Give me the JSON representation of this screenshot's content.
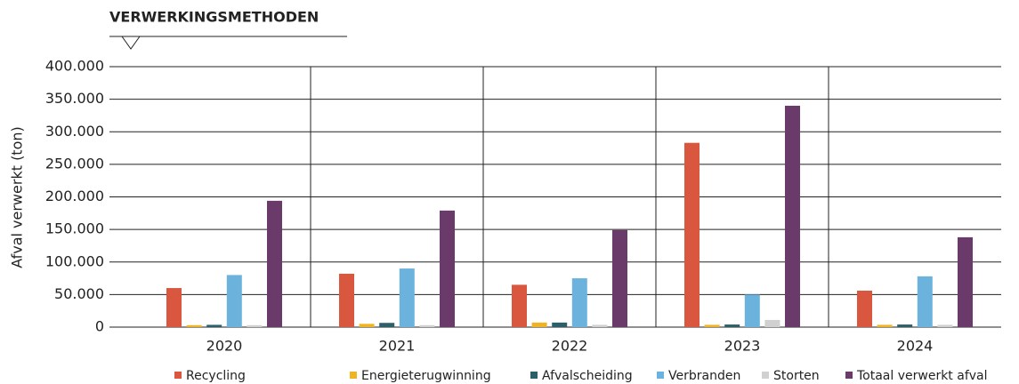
{
  "chart_data": {
    "type": "bar",
    "title": "VERWERKINGSMETHODEN",
    "ylabel": "Afval verwerkt  (ton)",
    "categories": [
      "2020",
      "2021",
      "2022",
      "2023",
      "2024"
    ],
    "series": [
      {
        "name": "Recycling",
        "color": "#d9573f",
        "values": [
          60000,
          82000,
          65000,
          283000,
          56000
        ]
      },
      {
        "name": "Energieterugwinning",
        "color": "#f0b323",
        "values": [
          3000,
          5000,
          7000,
          3500,
          3500
        ]
      },
      {
        "name": "Afvalscheiding",
        "color": "#2d5f6b",
        "values": [
          3500,
          6500,
          7000,
          4000,
          4000
        ]
      },
      {
        "name": "Verbranden",
        "color": "#6bb3dd",
        "values": [
          80000,
          90000,
          75000,
          50000,
          78000
        ]
      },
      {
        "name": "Storten",
        "color": "#d0d0d0",
        "values": [
          3000,
          3000,
          3500,
          11000,
          3500
        ]
      },
      {
        "name": "Totaal verwerkt afval",
        "color": "#6a3a6b",
        "values": [
          194000,
          179000,
          149000,
          340000,
          138000
        ]
      }
    ],
    "ylim": [
      0,
      400000
    ],
    "yticks": [
      0,
      {
        "value": 50000,
        "label": "50.000"
      },
      {
        "value": 100000,
        "label": "100.000"
      },
      {
        "value": 150000,
        "label": "150.000"
      },
      {
        "value": 200000,
        "label": "200.000"
      },
      {
        "value": 250000,
        "label": "250.000"
      },
      {
        "value": 300000,
        "label": "300.000"
      },
      {
        "value": 350000,
        "label": "350.000"
      },
      {
        "value": 400000,
        "label": "400.000"
      }
    ],
    "grid": true,
    "legend": "bottom"
  }
}
